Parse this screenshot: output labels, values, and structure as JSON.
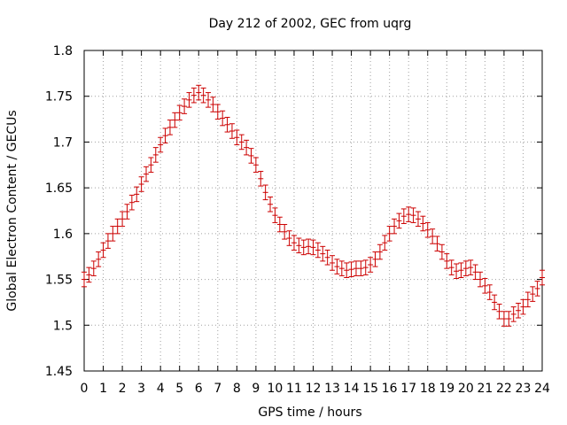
{
  "chart_data": {
    "type": "scatter",
    "title": "Day 212 of 2002, GEC from uqrg",
    "xlabel": "GPS time / hours",
    "ylabel": "Global Electron Content / GECUs",
    "xlim": [
      0,
      24
    ],
    "ylim": [
      1.45,
      1.8
    ],
    "x_ticks": [
      0,
      1,
      2,
      3,
      4,
      5,
      6,
      7,
      8,
      9,
      10,
      11,
      12,
      13,
      14,
      15,
      16,
      17,
      18,
      19,
      20,
      21,
      22,
      23,
      24
    ],
    "y_ticks": [
      1.45,
      1.5,
      1.55,
      1.6,
      1.65,
      1.7,
      1.75,
      1.8
    ],
    "y_tick_labels": [
      "1.45",
      "1.5",
      "1.55",
      "1.6",
      "1.65",
      "1.7",
      "1.75",
      "1.8"
    ],
    "grid": true,
    "error_bar": 0.008,
    "marker_color": "#cc0000",
    "series": [
      {
        "x": [
          0,
          0.25,
          0.5,
          0.75,
          1,
          1.25,
          1.5,
          1.75,
          2,
          2.25,
          2.5,
          2.75,
          3,
          3.25,
          3.5,
          3.75,
          4,
          4.25,
          4.5,
          4.75,
          5,
          5.25,
          5.5,
          5.75,
          6,
          6.25,
          6.5,
          6.75,
          7,
          7.25,
          7.5,
          7.75,
          8,
          8.25,
          8.5,
          8.75,
          9,
          9.25,
          9.5,
          9.75,
          10,
          10.25,
          10.5,
          10.75,
          11,
          11.25,
          11.5,
          11.75,
          12,
          12.25,
          12.5,
          12.75,
          13,
          13.25,
          13.5,
          13.75,
          14,
          14.25,
          14.5,
          14.75,
          15,
          15.25,
          15.5,
          15.75,
          16,
          16.25,
          16.5,
          16.75,
          17,
          17.25,
          17.5,
          17.75,
          18,
          18.25,
          18.5,
          18.75,
          19,
          19.25,
          19.5,
          19.75,
          20,
          20.25,
          20.5,
          20.75,
          21,
          21.25,
          21.5,
          21.75,
          22,
          22.25,
          22.5,
          22.75,
          23,
          23.25,
          23.5,
          23.75,
          24
        ],
        "y": [
          1.55,
          1.555,
          1.562,
          1.572,
          1.582,
          1.592,
          1.6,
          1.608,
          1.616,
          1.624,
          1.634,
          1.643,
          1.654,
          1.665,
          1.675,
          1.686,
          1.697,
          1.707,
          1.716,
          1.724,
          1.732,
          1.739,
          1.746,
          1.751,
          1.754,
          1.751,
          1.746,
          1.741,
          1.733,
          1.726,
          1.719,
          1.712,
          1.705,
          1.7,
          1.694,
          1.685,
          1.675,
          1.66,
          1.645,
          1.632,
          1.62,
          1.61,
          1.602,
          1.595,
          1.59,
          1.587,
          1.585,
          1.586,
          1.585,
          1.582,
          1.578,
          1.574,
          1.568,
          1.564,
          1.562,
          1.56,
          1.561,
          1.562,
          1.562,
          1.563,
          1.566,
          1.572,
          1.58,
          1.59,
          1.6,
          1.608,
          1.614,
          1.619,
          1.621,
          1.62,
          1.616,
          1.611,
          1.604,
          1.597,
          1.589,
          1.58,
          1.57,
          1.563,
          1.559,
          1.56,
          1.562,
          1.563,
          1.558,
          1.55,
          1.543,
          1.536,
          1.525,
          1.515,
          1.507,
          1.507,
          1.512,
          1.516,
          1.52,
          1.528,
          1.534,
          1.54,
          1.552
        ]
      }
    ]
  }
}
